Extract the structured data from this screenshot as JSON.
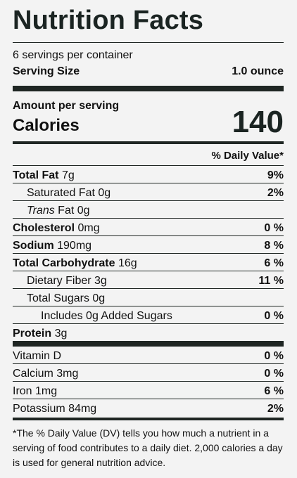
{
  "title": "Nutrition Facts",
  "servings": "6 servings per container",
  "serving_size_label": "Serving Size",
  "serving_size_value": "1.0 ounce",
  "amount_per_serving": "Amount per serving",
  "calories_label": "Calories",
  "calories_value": "140",
  "dv_header": "% Daily Value*",
  "rows": {
    "total_fat": {
      "label": "Total Fat",
      "amount": "7g",
      "dv": "9%"
    },
    "saturated_fat": {
      "label": "Saturated Fat",
      "amount": "0g",
      "dv": "2%"
    },
    "trans_fat": {
      "label": "Trans",
      "suffix": "Fat",
      "amount": "0g"
    },
    "cholesterol": {
      "label": "Cholesterol",
      "amount": "0mg",
      "dv": "0 %"
    },
    "sodium": {
      "label": "Sodium",
      "amount": "190mg",
      "dv": "8 %"
    },
    "total_carb": {
      "label": "Total Carbohydrate",
      "amount": "16g",
      "dv": "6 %"
    },
    "fiber": {
      "label": "Dietary Fiber",
      "amount": "3g",
      "dv": "11 %"
    },
    "sugars": {
      "label": "Total Sugars",
      "amount": "0g"
    },
    "added_sugars": {
      "label": "Includes",
      "amount": "0g",
      "suffix": "Added Sugars",
      "dv": "0 %"
    },
    "protein": {
      "label": "Protein",
      "amount": "3g"
    }
  },
  "vitamins": {
    "vitamin_d": {
      "label": "Vitamin D",
      "dv": "0 %"
    },
    "calcium": {
      "label": "Calcium",
      "amount": "3mg",
      "dv": "0 %"
    },
    "iron": {
      "label": "Iron",
      "amount": "1mg",
      "dv": "6 %"
    },
    "potassium": {
      "label": "Potassium",
      "amount": "84mg",
      "dv": "2%"
    }
  },
  "footnote": "*The % Daily Value (DV) tells you how much a nutrient in a serving of food contributes to a daily diet. 2,000 calories a day is used for general nutrition advice."
}
